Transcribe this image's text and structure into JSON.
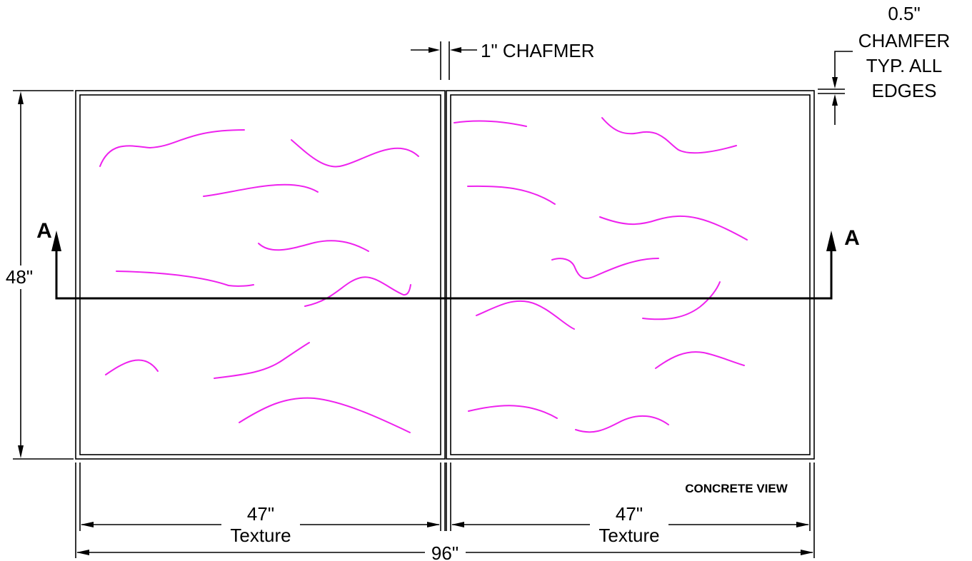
{
  "title": "CONCRETE VIEW",
  "dimensions": {
    "height": "48\"",
    "overall_width": "96\"",
    "left_width": "47\"",
    "left_note": "Texture",
    "right_width": "47\"",
    "right_note": "Texture",
    "center_chamfer": "1\" CHAFMER",
    "edge_chamfer_lines": [
      "0.5\"",
      "CHAMFER",
      "TYP. ALL",
      "EDGES"
    ]
  },
  "section_marks": {
    "left": "A",
    "right": "A"
  },
  "colors": {
    "linework": "#000000",
    "texture": "#ee22ee"
  }
}
